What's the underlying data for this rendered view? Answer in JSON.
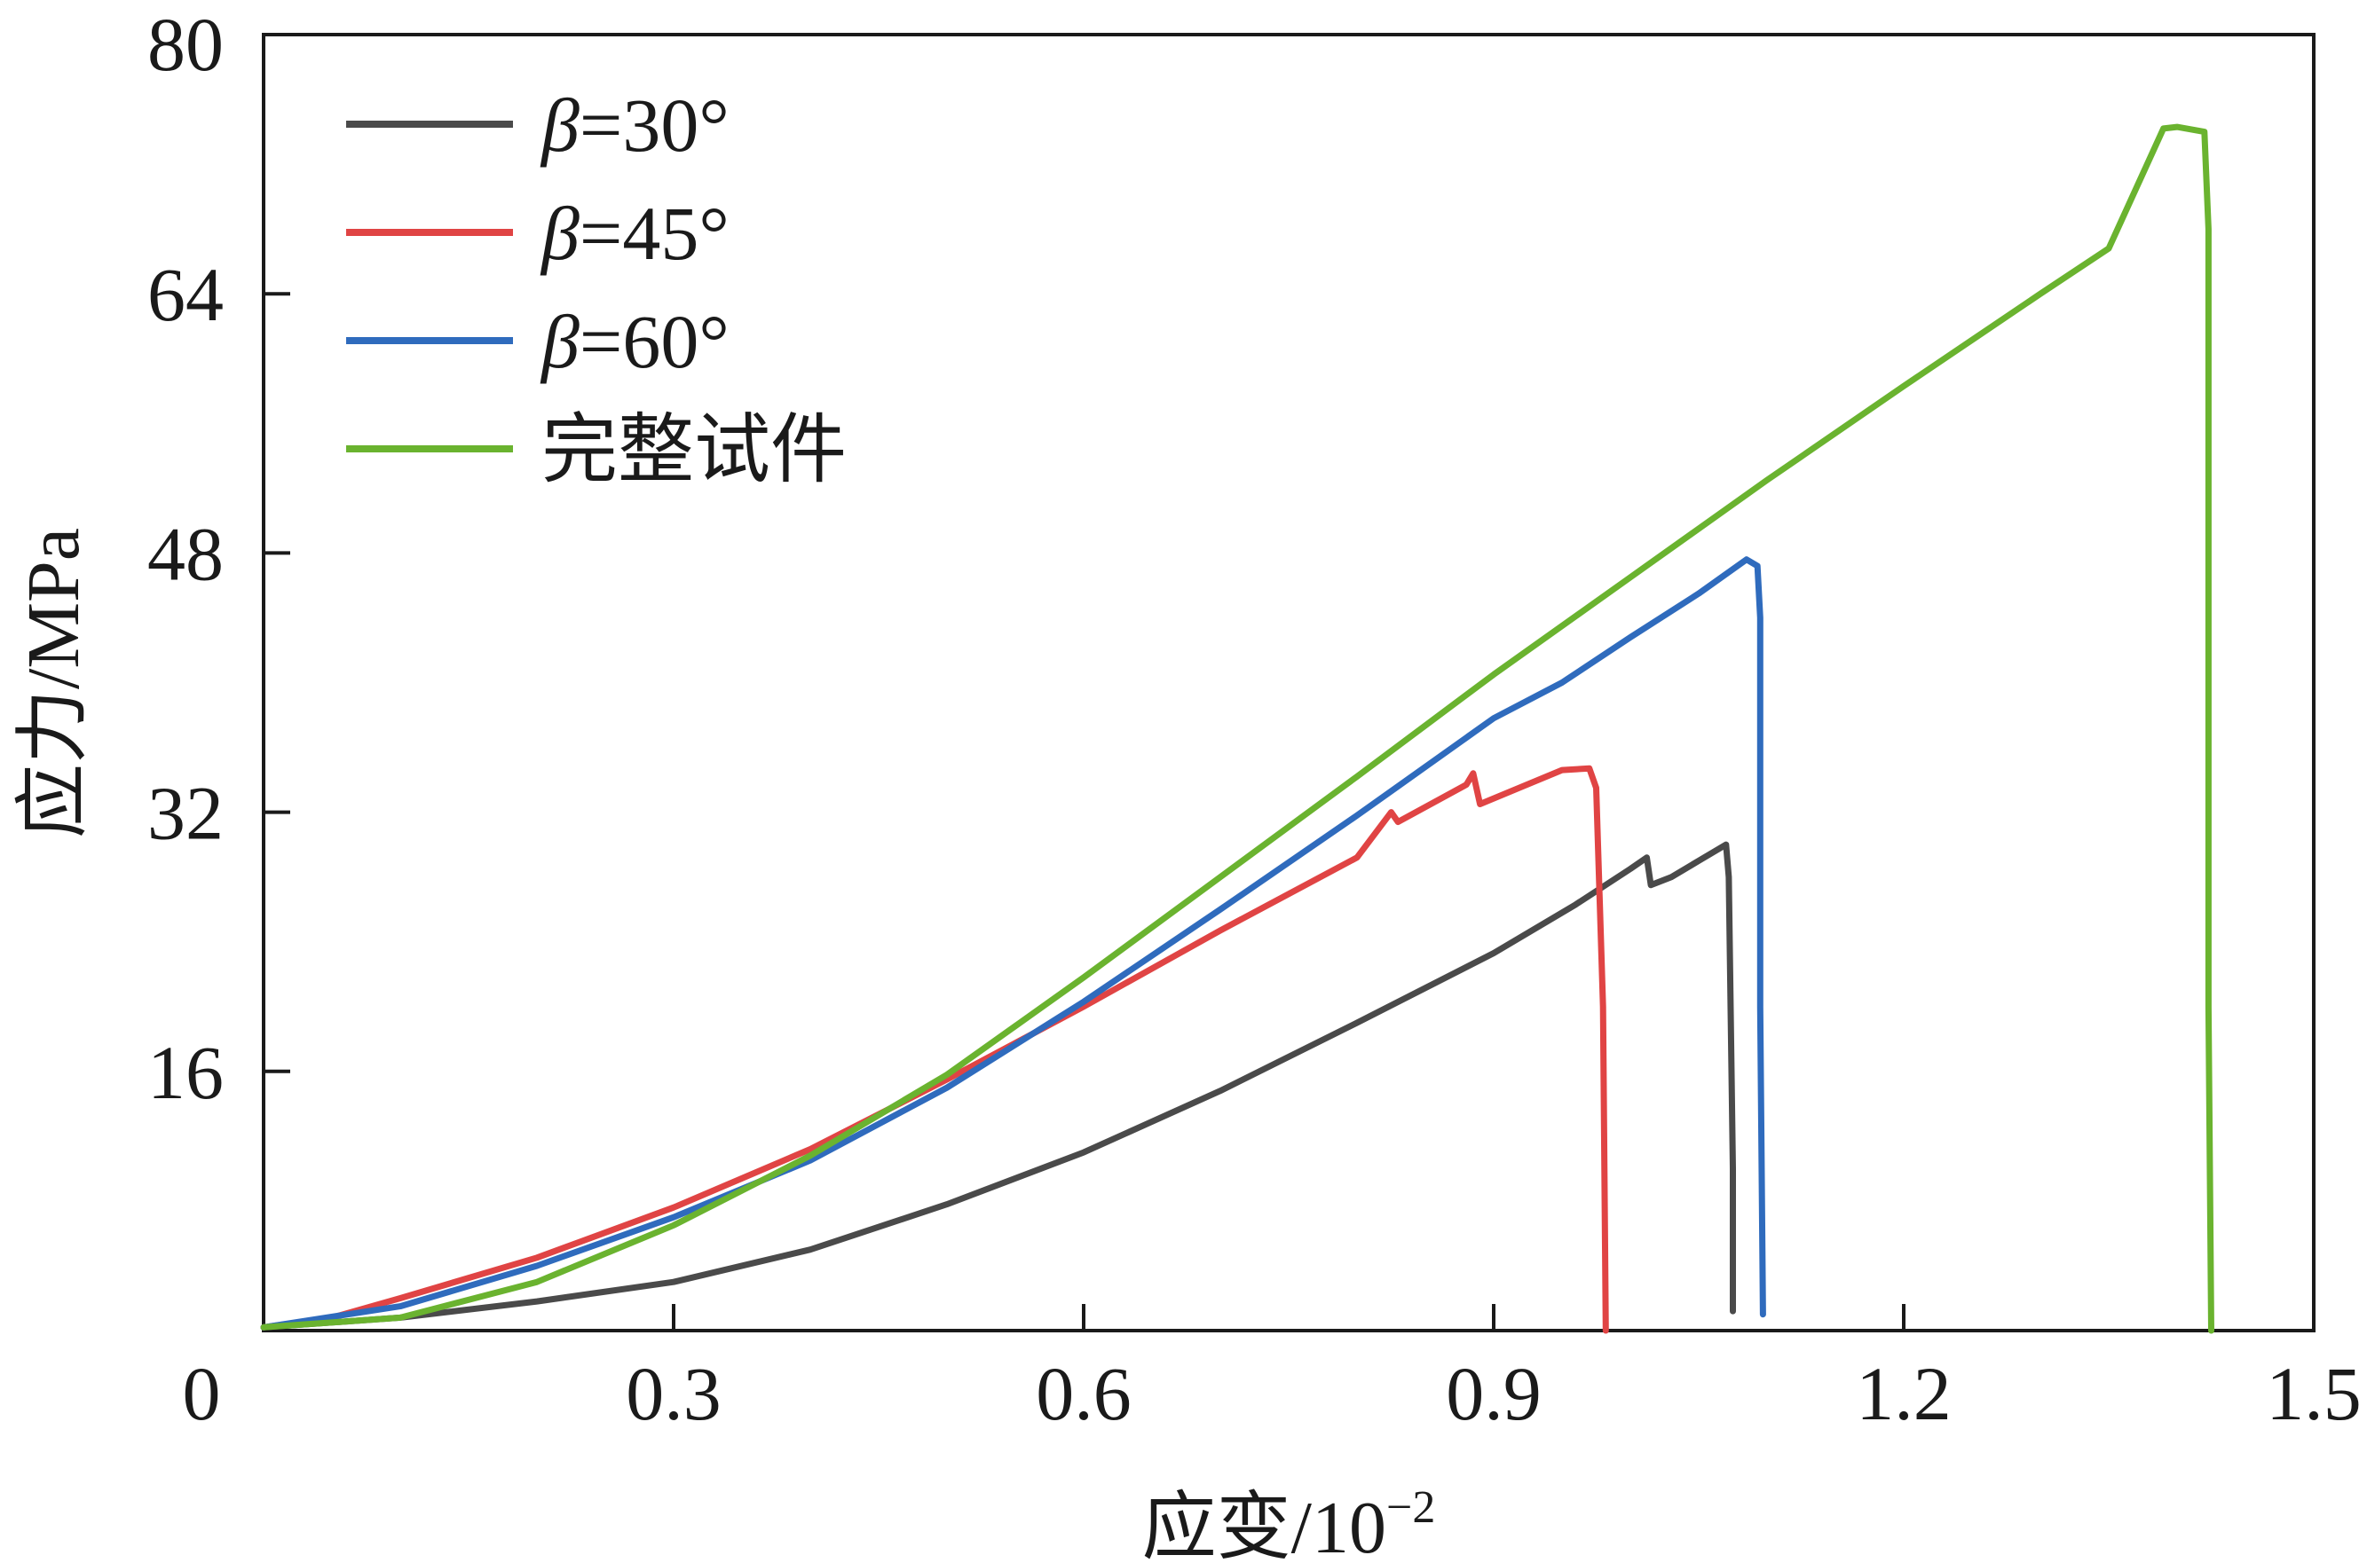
{
  "chart_data": {
    "type": "line",
    "title": "",
    "xlabel": "应变/10",
    "xlabel_sup": "−2",
    "ylabel": "应力/MPa",
    "xlim": [
      0,
      1.5
    ],
    "ylim": [
      0,
      80
    ],
    "x_ticks": [
      0,
      0.3,
      0.6,
      0.9,
      1.2,
      1.5
    ],
    "x_tick_labels": [
      "0",
      "0.3",
      "0.6",
      "0.9",
      "1.2",
      "1.5"
    ],
    "y_ticks": [
      16,
      32,
      48,
      64,
      80
    ],
    "y_tick_labels": [
      "16",
      "32",
      "48",
      "64",
      "80"
    ],
    "grid": false,
    "legend_position": "top-left",
    "series": [
      {
        "name": "β=30°",
        "name_prefix": "β",
        "name_rest": "=30°",
        "color": "#4a4a4a",
        "points": [
          [
            0,
            0.2
          ],
          [
            0.1,
            0.8
          ],
          [
            0.2,
            1.8
          ],
          [
            0.3,
            3.0
          ],
          [
            0.4,
            5.0
          ],
          [
            0.5,
            7.8
          ],
          [
            0.6,
            11.0
          ],
          [
            0.7,
            14.8
          ],
          [
            0.8,
            19.0
          ],
          [
            0.9,
            23.3
          ],
          [
            0.96,
            26.3
          ],
          [
            1.0,
            28.5
          ],
          [
            1.012,
            29.2
          ],
          [
            1.015,
            27.5
          ],
          [
            1.03,
            28.0
          ],
          [
            1.05,
            29.0
          ],
          [
            1.07,
            30.0
          ],
          [
            1.072,
            28.0
          ],
          [
            1.075,
            10.0
          ],
          [
            1.075,
            1.2
          ]
        ]
      },
      {
        "name": "β=45°",
        "name_prefix": "β",
        "name_rest": "=45°",
        "color": "#e04444",
        "points": [
          [
            0,
            0.2
          ],
          [
            0.05,
            0.8
          ],
          [
            0.1,
            2.0
          ],
          [
            0.2,
            4.5
          ],
          [
            0.3,
            7.6
          ],
          [
            0.4,
            11.2
          ],
          [
            0.5,
            15.5
          ],
          [
            0.6,
            20.0
          ],
          [
            0.7,
            24.7
          ],
          [
            0.8,
            29.2
          ],
          [
            0.825,
            32.0
          ],
          [
            0.83,
            31.4
          ],
          [
            0.88,
            33.7
          ],
          [
            0.885,
            34.4
          ],
          [
            0.89,
            32.5
          ],
          [
            0.95,
            34.6
          ],
          [
            0.97,
            34.7
          ],
          [
            0.975,
            33.5
          ],
          [
            0.98,
            20.0
          ],
          [
            0.982,
            0
          ]
        ]
      },
      {
        "name": "β=60°",
        "name_prefix": "β",
        "name_rest": "=60°",
        "color": "#2f6bbd",
        "points": [
          [
            0,
            0.2
          ],
          [
            0.1,
            1.5
          ],
          [
            0.2,
            4.0
          ],
          [
            0.3,
            7.0
          ],
          [
            0.4,
            10.5
          ],
          [
            0.5,
            15.0
          ],
          [
            0.6,
            20.3
          ],
          [
            0.7,
            26.0
          ],
          [
            0.8,
            31.8
          ],
          [
            0.9,
            37.8
          ],
          [
            0.95,
            40.0
          ],
          [
            1.0,
            42.8
          ],
          [
            1.05,
            45.5
          ],
          [
            1.085,
            47.6
          ],
          [
            1.093,
            47.2
          ],
          [
            1.095,
            44.0
          ],
          [
            1.095,
            20.0
          ],
          [
            1.097,
            1.0
          ]
        ]
      },
      {
        "name": "完整试件",
        "name_prefix": "",
        "name_rest": "完整试件",
        "color": "#6ab32f",
        "points": [
          [
            0,
            0.2
          ],
          [
            0.1,
            0.8
          ],
          [
            0.2,
            3.0
          ],
          [
            0.3,
            6.5
          ],
          [
            0.4,
            10.8
          ],
          [
            0.5,
            15.8
          ],
          [
            0.6,
            21.8
          ],
          [
            0.7,
            28.0
          ],
          [
            0.8,
            34.2
          ],
          [
            0.9,
            40.5
          ],
          [
            1.0,
            46.5
          ],
          [
            1.1,
            52.5
          ],
          [
            1.2,
            58.3
          ],
          [
            1.3,
            64.0
          ],
          [
            1.35,
            66.8
          ],
          [
            1.39,
            74.2
          ],
          [
            1.4,
            74.3
          ],
          [
            1.42,
            74.0
          ],
          [
            1.423,
            68.0
          ],
          [
            1.423,
            20.0
          ],
          [
            1.425,
            0
          ]
        ]
      }
    ]
  }
}
